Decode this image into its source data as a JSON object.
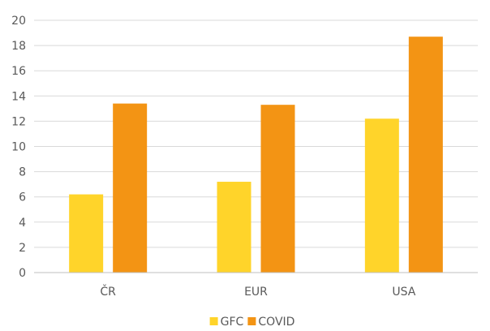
{
  "chart_data": {
    "type": "bar",
    "categories": [
      "ČR",
      "EUR",
      "USA"
    ],
    "series": [
      {
        "name": "GFC",
        "values": [
          6.2,
          7.2,
          12.2
        ],
        "color": "#FFD42A"
      },
      {
        "name": "COVID",
        "values": [
          13.4,
          13.3,
          18.7
        ],
        "color": "#F39414"
      }
    ],
    "ylim": [
      0,
      20
    ],
    "yticks": [
      0,
      2,
      4,
      6,
      8,
      10,
      12,
      14,
      16,
      18,
      20
    ],
    "grid": true,
    "legend": "bottom",
    "colors": {
      "grid": "#D9D9D9",
      "axis": "#BFBFBF",
      "text": "#595959"
    }
  }
}
